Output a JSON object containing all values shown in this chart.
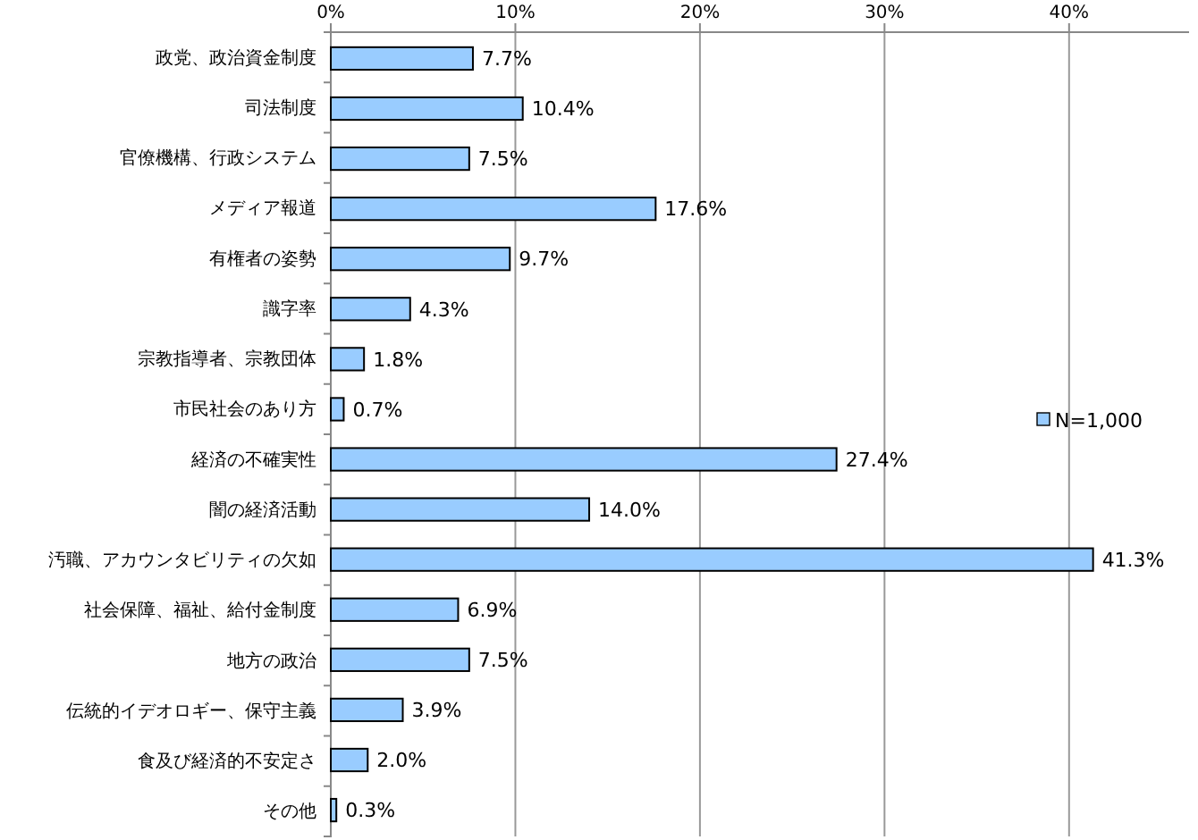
{
  "chart_data": {
    "type": "bar",
    "orientation": "horizontal",
    "categories": [
      "政党、政治資金制度",
      "司法制度",
      "官僚機構、行政システム",
      "メディア報道",
      "有権者の姿勢",
      "識字率",
      "宗教指導者、宗教団体",
      "市民社会のあり方",
      "経済の不確実性",
      "闇の経済活動",
      "汚職、アカウンタビリティの欠如",
      "社会保障、福祉、給付金制度",
      "地方の政治",
      "伝統的イデオロギー、保守主義",
      "食及び経済的不安定さ",
      "その他"
    ],
    "series": [
      {
        "name": "N=1,000",
        "color": "#99ccff",
        "values": [
          7.7,
          10.4,
          7.5,
          17.6,
          9.7,
          4.3,
          1.8,
          0.7,
          27.4,
          14.0,
          41.3,
          6.9,
          7.5,
          3.9,
          2.0,
          0.3
        ],
        "value_labels": [
          "7.7%",
          "10.4%",
          "7.5%",
          "17.6%",
          "9.7%",
          "4.3%",
          "1.8%",
          "0.7%",
          "27.4%",
          "14.0%",
          "41.3%",
          "6.9%",
          "7.5%",
          "3.9%",
          "2.0%",
          "0.3%"
        ]
      }
    ],
    "xlim": [
      0,
      46.5
    ],
    "xticks": [
      {
        "value": 0,
        "label": "0%"
      },
      {
        "value": 10,
        "label": "10%"
      },
      {
        "value": 20,
        "label": "20%"
      },
      {
        "value": 30,
        "label": "30%"
      },
      {
        "value": 40,
        "label": "40%"
      }
    ],
    "grid": "x",
    "legend": "right"
  }
}
